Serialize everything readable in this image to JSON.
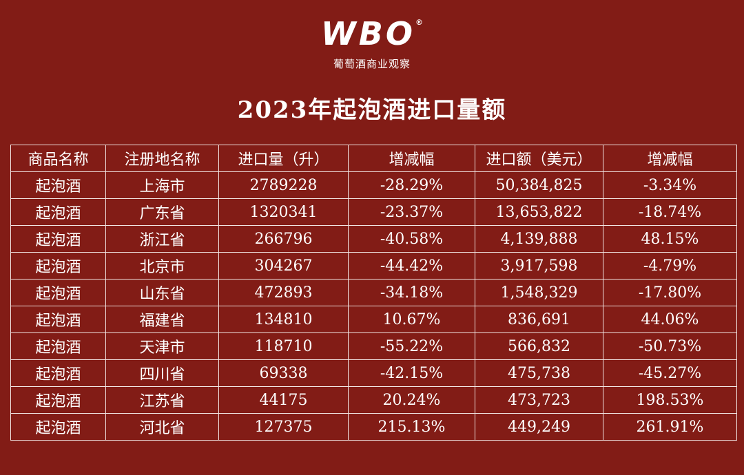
{
  "header": {
    "logo": "WBO",
    "logo_mark": "®",
    "subtitle": "葡萄酒商业观察",
    "title": "2023年起泡酒进口量额"
  },
  "table": {
    "columns": [
      "商品名称",
      "注册地名称",
      "进口量（升）",
      "增减幅",
      "进口额（美元）",
      "增减幅"
    ],
    "rows": [
      [
        "起泡酒",
        "上海市",
        "2789228",
        "-28.29%",
        "50,384,825",
        "-3.34%"
      ],
      [
        "起泡酒",
        "广东省",
        "1320341",
        "-23.37%",
        "13,653,822",
        "-18.74%"
      ],
      [
        "起泡酒",
        "浙江省",
        "266796",
        "-40.58%",
        "4,139,888",
        "48.15%"
      ],
      [
        "起泡酒",
        "北京市",
        "304267",
        "-44.42%",
        "3,917,598",
        "-4.79%"
      ],
      [
        "起泡酒",
        "山东省",
        "472893",
        "-34.18%",
        "1,548,329",
        "-17.80%"
      ],
      [
        "起泡酒",
        "福建省",
        "134810",
        "10.67%",
        "836,691",
        "44.06%"
      ],
      [
        "起泡酒",
        "天津市",
        "118710",
        "-55.22%",
        "566,832",
        "-50.73%"
      ],
      [
        "起泡酒",
        "四川省",
        "69338",
        "-42.15%",
        "475,738",
        "-45.27%"
      ],
      [
        "起泡酒",
        "江苏省",
        "44175",
        "20.24%",
        "473,723",
        "198.53%"
      ],
      [
        "起泡酒",
        "河北省",
        "127375",
        "215.13%",
        "449,249",
        "261.91%"
      ]
    ]
  }
}
